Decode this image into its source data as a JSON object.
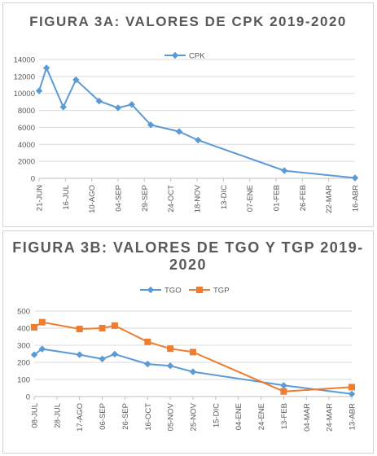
{
  "chart_data": [
    {
      "id": "a",
      "type": "line",
      "title": "FIGURA 3A: VALORES DE CPK 2019-2020",
      "xlabel": "",
      "ylabel": "",
      "ylim": [
        0,
        14000
      ],
      "yticks": [
        0,
        2000,
        4000,
        6000,
        8000,
        10000,
        12000,
        14000
      ],
      "xlim": [
        "2019-06-21",
        "2020-04-16"
      ],
      "xticks": [
        "21-JUN",
        "16-JUL",
        "10-AGO",
        "04-SEP",
        "29-SEP",
        "24-OCT",
        "18-NOV",
        "13-DIC",
        "07-ENE",
        "01-FEB",
        "26-FEB",
        "22-MAR",
        "16-ABR"
      ],
      "grid": true,
      "legend": "top-center",
      "series": [
        {
          "name": "CPK",
          "color": "#5b9bd5",
          "marker": "diamond",
          "x": [
            "2019-06-21",
            "2019-06-28",
            "2019-07-14",
            "2019-07-26",
            "2019-08-17",
            "2019-09-04",
            "2019-09-17",
            "2019-10-05",
            "2019-11-01",
            "2019-11-19",
            "2020-02-09",
            "2020-04-16"
          ],
          "values": [
            10300,
            13000,
            8400,
            11600,
            9100,
            8300,
            8700,
            6300,
            5500,
            4500,
            900,
            50
          ]
        }
      ]
    },
    {
      "id": "b",
      "type": "line",
      "title": "FIGURA 3B: VALORES DE TGO Y TGP 2019-2020",
      "xlabel": "",
      "ylabel": "",
      "ylim": [
        0,
        500
      ],
      "yticks": [
        0,
        100,
        200,
        300,
        400,
        500
      ],
      "xlim": [
        "2019-07-08",
        "2020-04-13"
      ],
      "xticks": [
        "08-JUL",
        "28-JUL",
        "17-AGO",
        "06-SEP",
        "26-SEP",
        "16-OCT",
        "05-NOV",
        "25-NOV",
        "15-DIC",
        "04-ENE",
        "24-ENE",
        "13-FEB",
        "04-MAR",
        "24-MAR",
        "13-ABR"
      ],
      "grid": true,
      "legend": "top-center",
      "series": [
        {
          "name": "TGO",
          "color": "#5b9bd5",
          "marker": "diamond",
          "x": [
            "2019-07-08",
            "2019-07-15",
            "2019-08-17",
            "2019-09-06",
            "2019-09-17",
            "2019-10-16",
            "2019-11-05",
            "2019-11-25",
            "2020-02-13",
            "2020-04-13"
          ],
          "values": [
            245,
            278,
            245,
            220,
            248,
            190,
            180,
            145,
            65,
            15
          ]
        },
        {
          "name": "TGP",
          "color": "#ed7d31",
          "marker": "square",
          "x": [
            "2019-07-08",
            "2019-07-15",
            "2019-08-17",
            "2019-09-06",
            "2019-09-17",
            "2019-10-16",
            "2019-11-05",
            "2019-11-25",
            "2020-02-13",
            "2020-04-13"
          ],
          "values": [
            405,
            435,
            395,
            400,
            415,
            320,
            280,
            260,
            30,
            55
          ]
        }
      ]
    }
  ]
}
